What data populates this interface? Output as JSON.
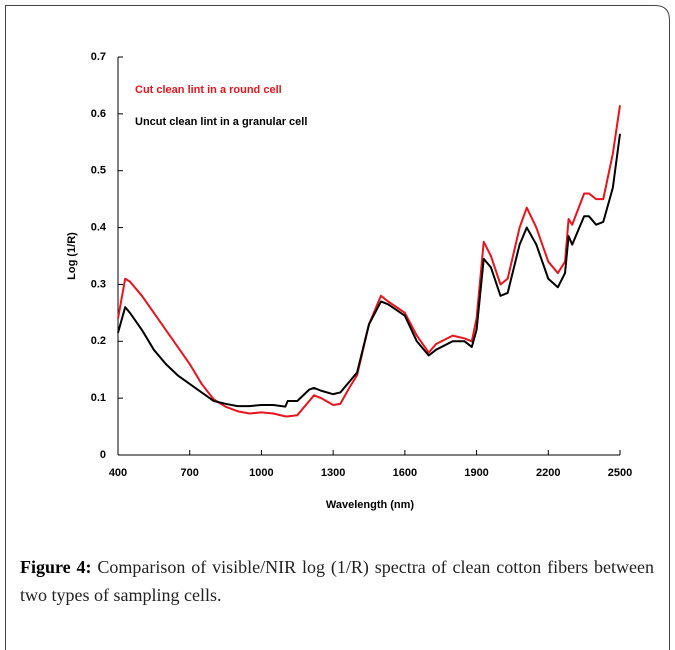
{
  "chart_data": {
    "type": "line",
    "x_label": "Wavelength (nm)",
    "y_label": "Log (1/R)",
    "x": [
      400,
      430,
      450,
      500,
      550,
      600,
      650,
      700,
      750,
      800,
      850,
      900,
      950,
      1000,
      1050,
      1100,
      1110,
      1150,
      1200,
      1220,
      1250,
      1300,
      1330,
      1370,
      1400,
      1450,
      1500,
      1530,
      1600,
      1650,
      1700,
      1730,
      1800,
      1850,
      1880,
      1900,
      1930,
      1960,
      2000,
      2030,
      2080,
      2110,
      2150,
      2200,
      2240,
      2270,
      2285,
      2300,
      2350,
      2370,
      2400,
      2430,
      2470,
      2500
    ],
    "series": [
      {
        "name": "Cut clean lint in a round cell",
        "color": "#e8141c",
        "values": [
          0.24,
          0.31,
          0.305,
          0.28,
          0.25,
          0.22,
          0.19,
          0.16,
          0.125,
          0.098,
          0.085,
          0.077,
          0.073,
          0.075,
          0.073,
          0.068,
          0.068,
          0.07,
          0.095,
          0.105,
          0.1,
          0.088,
          0.09,
          0.12,
          0.14,
          0.23,
          0.28,
          0.27,
          0.25,
          0.21,
          0.18,
          0.195,
          0.21,
          0.205,
          0.2,
          0.24,
          0.375,
          0.35,
          0.3,
          0.31,
          0.4,
          0.435,
          0.4,
          0.34,
          0.32,
          0.34,
          0.415,
          0.405,
          0.46,
          0.46,
          0.45,
          0.45,
          0.53,
          0.615
        ]
      },
      {
        "name": "Uncut clean lint in a granular cell",
        "color": "#000000",
        "values": [
          0.215,
          0.26,
          0.25,
          0.22,
          0.185,
          0.16,
          0.14,
          0.125,
          0.11,
          0.095,
          0.09,
          0.086,
          0.086,
          0.088,
          0.088,
          0.085,
          0.095,
          0.095,
          0.115,
          0.118,
          0.113,
          0.107,
          0.11,
          0.13,
          0.145,
          0.23,
          0.27,
          0.265,
          0.245,
          0.2,
          0.175,
          0.185,
          0.2,
          0.2,
          0.19,
          0.22,
          0.345,
          0.33,
          0.28,
          0.285,
          0.37,
          0.4,
          0.37,
          0.31,
          0.295,
          0.32,
          0.385,
          0.37,
          0.42,
          0.42,
          0.405,
          0.41,
          0.47,
          0.565
        ]
      }
    ],
    "xlim": [
      400,
      2500
    ],
    "xticks": [
      400,
      700,
      1000,
      1300,
      1600,
      1900,
      2200,
      2500
    ],
    "ylim": [
      0,
      0.7
    ],
    "yticks": [
      0,
      0.1,
      0.2,
      0.3,
      0.4,
      0.5,
      0.6,
      0.7
    ],
    "grid": false,
    "legend": "upper left"
  },
  "figure_caption": {
    "label": "Figure 4:",
    "text": "Comparison of visible/NIR log (1/R) spectra of clean cotton fibers between two types of sampling cells."
  }
}
